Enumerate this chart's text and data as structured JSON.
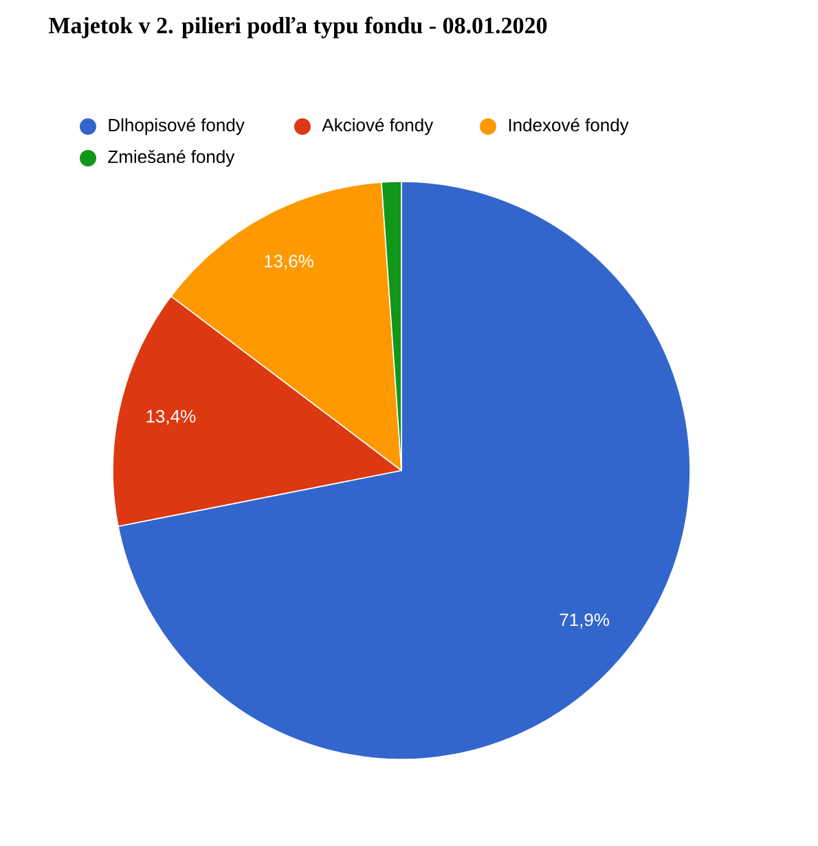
{
  "chart_data": {
    "type": "pie",
    "title": "Majetok v 2. pilieri podľa typu fondu - 08.01.2020",
    "categories": [
      "Dlhopisové fondy",
      "Akciové fondy",
      "Indexové fondy",
      "Zmiešané fondy"
    ],
    "values": [
      71.9,
      13.4,
      13.6,
      1.1
    ],
    "colors": [
      "#3366cc",
      "#dc3912",
      "#ff9900",
      "#109618"
    ],
    "value_labels": [
      "71,9%",
      "13,4%",
      "13,6%",
      null
    ],
    "legend": "top"
  }
}
